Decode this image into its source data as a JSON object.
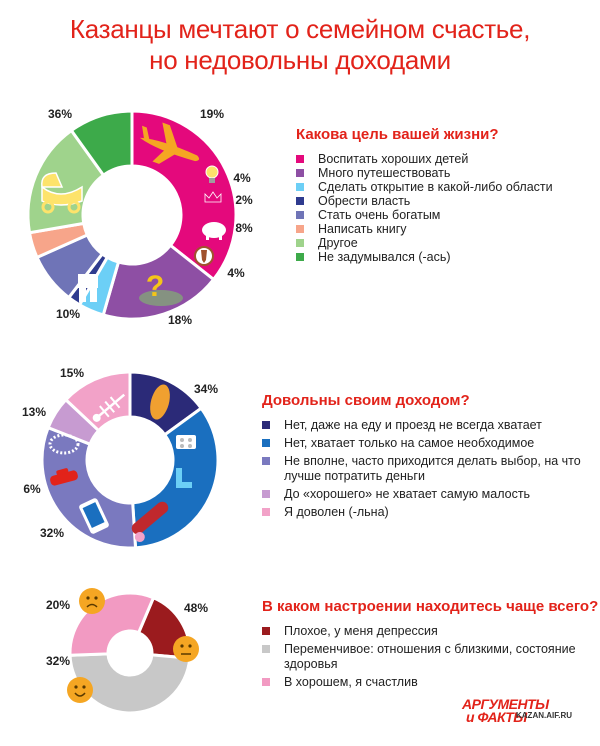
{
  "header": {
    "title_line1": "Казанцы мечтают о семейном счастье,",
    "title_line2": "но недовольны доходами"
  },
  "logo": {
    "line1": "АРГУМЕНТЫ",
    "line2": "и ФАКТЫ",
    "site": "KAZAN.AIF.RU"
  },
  "chart_data": [
    {
      "type": "pie",
      "title": "Какова цель вашей жизни?",
      "categories": [
        "Воспитать хороших детей",
        "Много путешествовать",
        "Сделать открытие в какой-либо области",
        "Обрести власть",
        "Стать очень богатым",
        "Написать книгу",
        "Другое",
        "Не задумывался (-ась)"
      ],
      "values": [
        36,
        19,
        4,
        2,
        8,
        4,
        18,
        10
      ],
      "labels": [
        "36%",
        "19%",
        "4%",
        "2%",
        "8%",
        "4%",
        "18%",
        "10%"
      ],
      "colors": [
        "#e4097c",
        "#8e4fa4",
        "#6ccff6",
        "#2f3b8f",
        "#6f74b7",
        "#f7a58a",
        "#9fd38c",
        "#3daa4a"
      ],
      "legend": "right"
    },
    {
      "type": "pie",
      "title": "Довольны своим доходом?",
      "categories": [
        "Нет, даже на еду и проезд не всегда хватает",
        "Нет, хватает только на самое необходимое",
        "Не вполне, часто приходится делать выбор, на что лучше потратить деньги",
        "До «хорошего» не хватает самую малость",
        "Я доволен (-льна)"
      ],
      "values": [
        15,
        34,
        32,
        6,
        13
      ],
      "labels": [
        "15%",
        "34%",
        "32%",
        "6%",
        "13%"
      ],
      "colors": [
        "#2b2a78",
        "#1a6fbf",
        "#7a79bf",
        "#c79bd1",
        "#f2a2c8"
      ],
      "legend": "right"
    },
    {
      "type": "pie",
      "title": "В каком настроении находитесь чаще всего?",
      "categories": [
        "Плохое, у меня депрессия",
        "Переменчивое: отношения с близкими, состояние здоровья",
        "В хорошем, я счастлив"
      ],
      "values": [
        20,
        48,
        32
      ],
      "labels": [
        "20%",
        "48%",
        "32%"
      ],
      "colors": [
        "#9b1b1e",
        "#c8c8c8",
        "#f29ac2"
      ],
      "legend": "right"
    }
  ]
}
